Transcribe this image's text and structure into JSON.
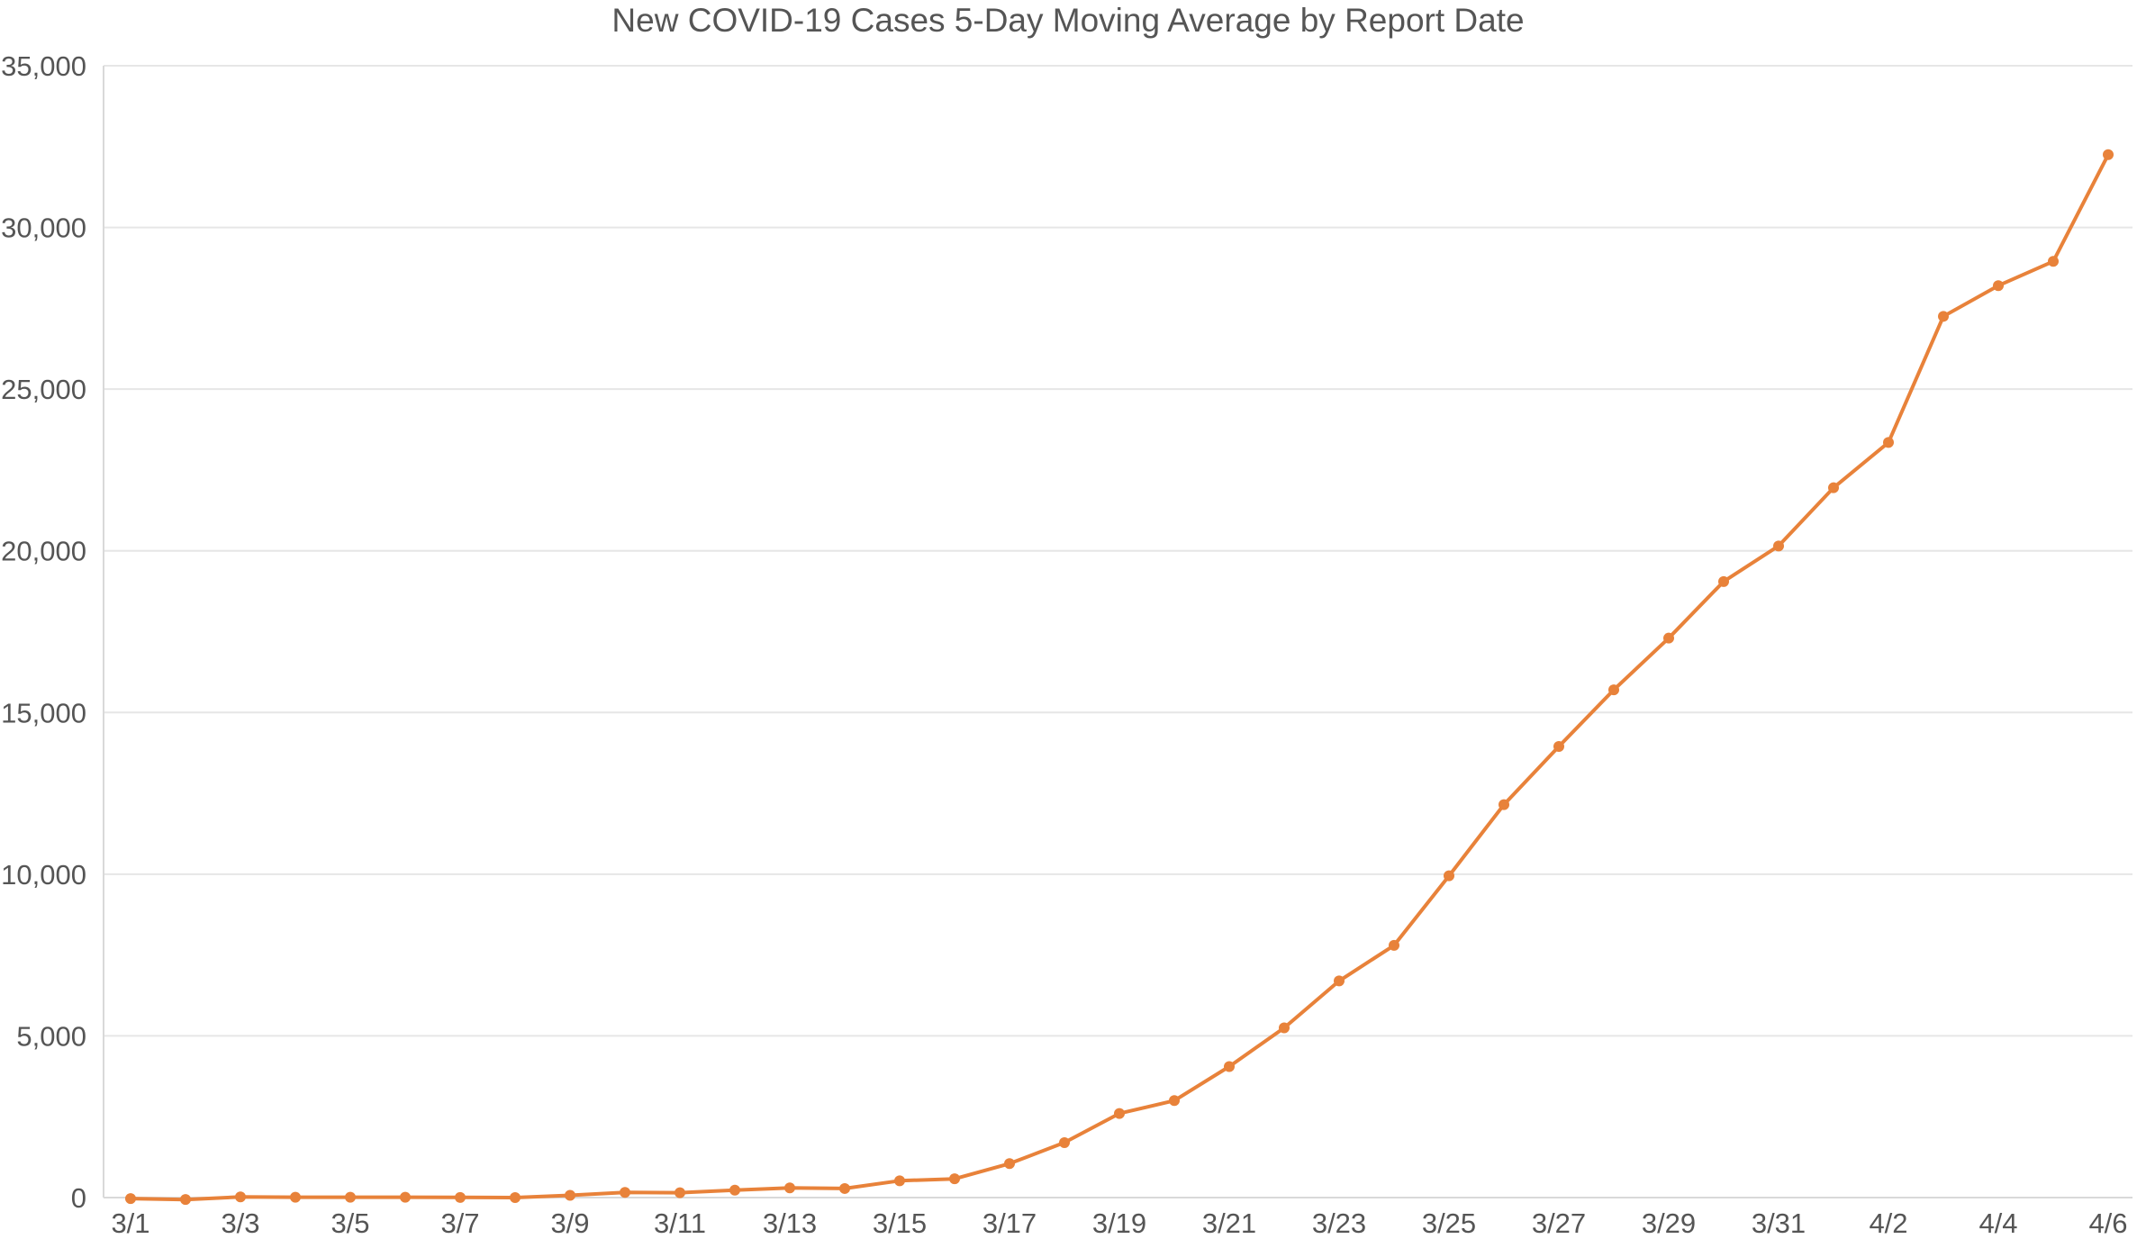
{
  "chart_data": {
    "type": "line",
    "title": "New COVID-19 Cases 5-Day Moving Average by Report Date",
    "xlabel": "",
    "ylabel": "",
    "ylim": [
      0,
      35000
    ],
    "y_ticks": [
      0,
      5000,
      10000,
      15000,
      20000,
      25000,
      30000,
      35000
    ],
    "y_tick_labels": [
      "0",
      "5,000",
      "10,000",
      "15,000",
      "20,000",
      "25,000",
      "30,000",
      "35,000"
    ],
    "x_tick_labels": [
      "3/1",
      "3/3",
      "3/5",
      "3/7",
      "3/9",
      "3/11",
      "3/13",
      "3/15",
      "3/17",
      "3/19",
      "3/21",
      "3/23",
      "3/25",
      "3/27",
      "3/29",
      "3/31",
      "4/2",
      "4/4",
      "4/6"
    ],
    "grid": true,
    "legend": "none",
    "line_color": "#E8823A",
    "grid_color": "#E6E6E6",
    "categories": [
      "3/1",
      "3/2",
      "3/3",
      "3/4",
      "3/5",
      "3/6",
      "3/7",
      "3/8",
      "3/9",
      "3/10",
      "3/11",
      "3/12",
      "3/13",
      "3/14",
      "3/15",
      "3/16",
      "3/17",
      "3/18",
      "3/19",
      "3/20",
      "3/21",
      "3/22",
      "3/23",
      "3/24",
      "3/25",
      "3/26",
      "3/27",
      "3/28",
      "3/29",
      "3/30",
      "3/31",
      "4/1",
      "4/2",
      "4/3",
      "4/4",
      "4/5",
      "4/6"
    ],
    "series": [
      {
        "values": [
          -30,
          -60,
          20,
          10,
          10,
          10,
          5,
          0,
          70,
          160,
          150,
          230,
          300,
          280,
          520,
          580,
          1050,
          1700,
          2600,
          3000,
          4050,
          5250,
          6700,
          7800,
          9950,
          12150,
          13950,
          15700,
          17300,
          19050,
          20150,
          21950,
          23350,
          27250,
          28200,
          28950,
          32250
        ]
      }
    ]
  }
}
